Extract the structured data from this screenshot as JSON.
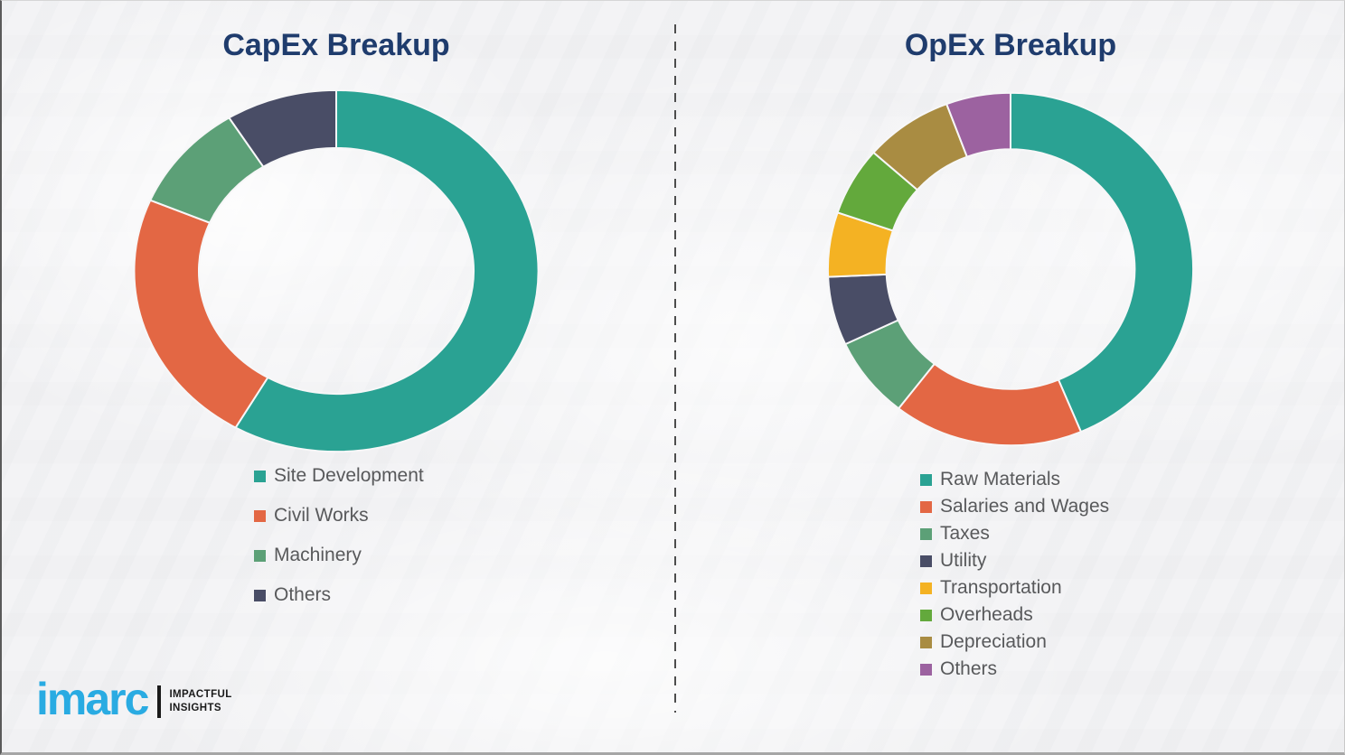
{
  "page": {
    "background_color": "#f3f3f5",
    "title_color": "#1f3c6d",
    "legend_text_color": "#58595b"
  },
  "chart_data": [
    {
      "type": "pie",
      "subtype": "donut",
      "title": "CapEx Breakup",
      "categories": [
        "Site Development",
        "Civil Works",
        "Machinery",
        "Others"
      ],
      "values": [
        58.3,
        23.1,
        9.7,
        8.9
      ],
      "values_note": "percent shares estimated from segment arc angles; no numeric labels shown in image",
      "colors": [
        "#2aa293",
        "#e36744",
        "#5ca077",
        "#494d66"
      ],
      "start_angle_deg": 0,
      "direction": "clockwise",
      "legend_position": "below-left",
      "donut_hole_ratio": 0.68
    },
    {
      "type": "pie",
      "subtype": "donut",
      "title": "OpEx Breakup",
      "categories": [
        "Raw Materials",
        "Salaries and Wages",
        "Taxes",
        "Utility",
        "Transportation",
        "Overheads",
        "Depreciation",
        "Others"
      ],
      "values": [
        43.7,
        16.8,
        7.5,
        6.3,
        5.9,
        6.3,
        7.8,
        5.7
      ],
      "values_note": "percent shares estimated from segment arc angles; no numeric labels shown in image",
      "colors": [
        "#2aa293",
        "#e36744",
        "#5ca077",
        "#494d66",
        "#f4b223",
        "#63a93c",
        "#a98c42",
        "#9c62a0"
      ],
      "start_angle_deg": 0,
      "direction": "clockwise",
      "legend_position": "below-left",
      "donut_hole_ratio": 0.68
    }
  ],
  "logo": {
    "brand": "imarc",
    "tagline_line1": "IMPACTFUL",
    "tagline_line2": "INSIGHTS",
    "brand_color": "#29abe2"
  }
}
